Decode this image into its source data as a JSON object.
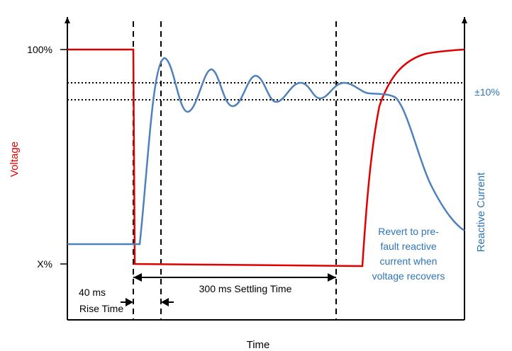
{
  "labels": {
    "y_top": "100%",
    "y_low": "X%",
    "voltage_axis": "Voltage",
    "reactive_axis": "Reactive Current",
    "time_axis": "Time",
    "tolerance": "±10%",
    "rise_time_line1": "40 ms",
    "rise_time_line2": "Rise Time",
    "settling_time": "300 ms Settling Time",
    "revert_line1": "Revert to pre-",
    "revert_line2": "fault reactive",
    "revert_line3": "current when",
    "revert_line4": "voltage recovers"
  },
  "colors": {
    "voltage": "#e00000",
    "reactive_current": "#4f81bd",
    "annotation": "#2e75b6",
    "axis": "#000000"
  }
}
